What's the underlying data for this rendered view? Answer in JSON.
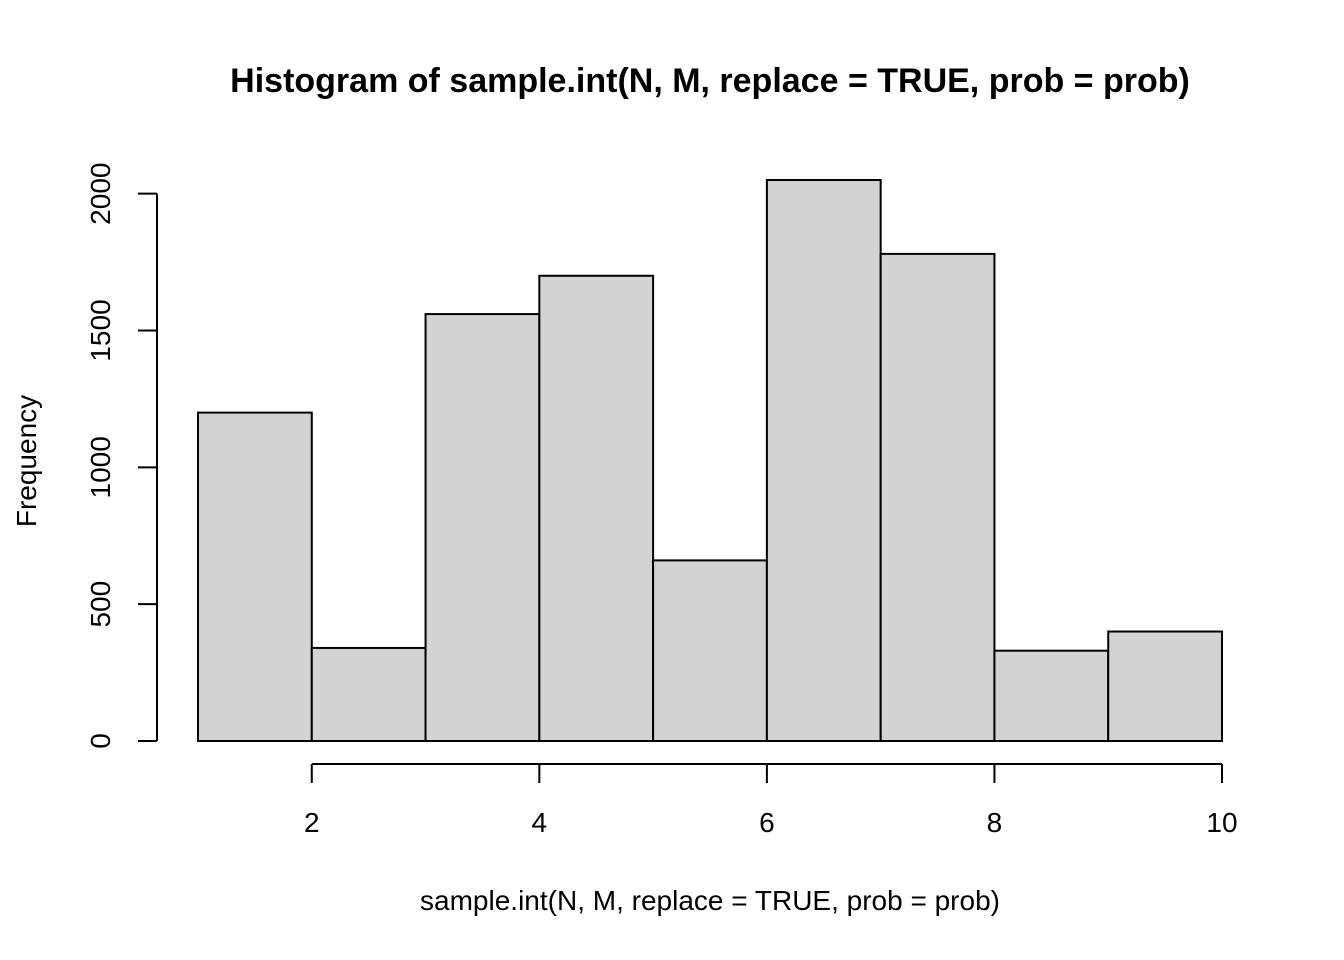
{
  "chart_data": {
    "type": "bar",
    "title": "Histogram of sample.int(N, M, replace = TRUE, prob = prob)",
    "xlabel": "sample.int(N, M, replace = TRUE, prob = prob)",
    "ylabel": "Frequency",
    "bins": [
      {
        "from": 1,
        "to": 2,
        "value": 1200
      },
      {
        "from": 2,
        "to": 3,
        "value": 340
      },
      {
        "from": 3,
        "to": 4,
        "value": 1560
      },
      {
        "from": 4,
        "to": 5,
        "value": 1700
      },
      {
        "from": 5,
        "to": 6,
        "value": 660
      },
      {
        "from": 6,
        "to": 7,
        "value": 2050
      },
      {
        "from": 7,
        "to": 8,
        "value": 1780
      },
      {
        "from": 8,
        "to": 9,
        "value": 330
      },
      {
        "from": 9,
        "to": 10,
        "value": 400
      }
    ],
    "xlim": [
      1,
      10
    ],
    "ylim": [
      0,
      2050
    ],
    "x_ticks": [
      2,
      4,
      6,
      8,
      10
    ],
    "y_ticks": [
      0,
      500,
      1000,
      1500,
      2000
    ],
    "grid": false,
    "bar_color": "#d3d3d3",
    "edge_color": "#000000"
  }
}
